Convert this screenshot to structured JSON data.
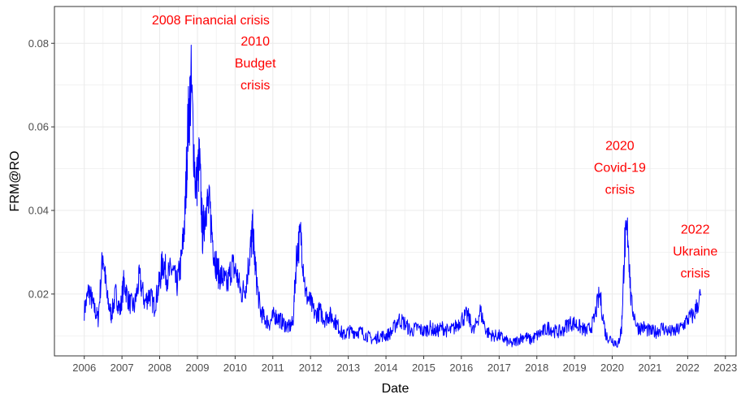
{
  "chart_data": {
    "type": "line",
    "title": "",
    "xlabel": "Date",
    "ylabel": "FRM@RO",
    "xlim": [
      "2005-03-18",
      "2023-04-15"
    ],
    "ylim": [
      0.0052,
      0.0888
    ],
    "grid": true,
    "legend": "none",
    "x_tick_labels": [
      "2006",
      "2007",
      "2008",
      "2009",
      "2010",
      "2011",
      "2012",
      "2013",
      "2014",
      "2015",
      "2016",
      "2017",
      "2018",
      "2019",
      "2020",
      "2021",
      "2022",
      "2023"
    ],
    "y_tick_labels": [
      "0.02",
      "0.04",
      "0.06",
      "0.08"
    ],
    "y_ticks": [
      0.02,
      0.04,
      0.06,
      0.08
    ],
    "colors": {
      "line": "#0000ff",
      "annotation": "#ff0000",
      "grid": "#ebebeb",
      "border": "#333333"
    },
    "series": [
      {
        "x": [
          "2006-01-01",
          "2006-02-15",
          "2006-04-01",
          "2006-05-15",
          "2006-07-01",
          "2006-08-10",
          "2006-09-20",
          "2006-11-01",
          "2006-12-15",
          "2007-01-20",
          "2007-03-10",
          "2007-05-01",
          "2007-06-20",
          "2007-08-10",
          "2007-09-25",
          "2007-11-10",
          "2007-12-25",
          "2008-02-01",
          "2008-03-15",
          "2008-05-01",
          "2008-06-15",
          "2008-07-30",
          "2008-09-01",
          "2008-10-01",
          "2008-11-01",
          "2008-12-15",
          "2009-01-20",
          "2009-02-20",
          "2009-03-25",
          "2009-05-01",
          "2009-06-10",
          "2009-07-20",
          "2009-09-01",
          "2009-10-15",
          "2009-12-01",
          "2010-01-15",
          "2010-03-01",
          "2010-04-15",
          "2010-05-25",
          "2010-06-20",
          "2010-07-20",
          "2010-09-01",
          "2010-10-15",
          "2010-12-01",
          "2011-01-15",
          "2011-03-01",
          "2011-04-15",
          "2011-06-01",
          "2011-07-15",
          "2011-08-20",
          "2011-10-01",
          "2011-11-15",
          "2012-01-01",
          "2012-02-15",
          "2012-04-01",
          "2012-05-15",
          "2012-07-01",
          "2012-08-15",
          "2012-10-01",
          "2012-11-15",
          "2013-01-01",
          "2013-03-01",
          "2013-05-01",
          "2013-07-01",
          "2013-09-01",
          "2013-11-01",
          "2014-01-01",
          "2014-03-01",
          "2014-05-01",
          "2014-07-01",
          "2014-09-01",
          "2014-11-01",
          "2015-01-01",
          "2015-03-01",
          "2015-05-01",
          "2015-07-01",
          "2015-09-01",
          "2015-11-01",
          "2016-01-01",
          "2016-03-01",
          "2016-05-01",
          "2016-07-01",
          "2016-09-01",
          "2016-11-01",
          "2017-01-01",
          "2017-03-01",
          "2017-05-01",
          "2017-07-01",
          "2017-09-01",
          "2017-11-01",
          "2018-01-01",
          "2018-03-01",
          "2018-05-01",
          "2018-07-01",
          "2018-09-01",
          "2018-11-01",
          "2019-01-01",
          "2019-03-01",
          "2019-05-01",
          "2019-07-01",
          "2019-09-01",
          "2019-11-01",
          "2020-01-01",
          "2020-03-01",
          "2020-04-01",
          "2020-05-01",
          "2020-06-01",
          "2020-07-01",
          "2020-09-01",
          "2020-11-01",
          "2021-01-01",
          "2021-03-01",
          "2021-05-01",
          "2021-07-01",
          "2021-09-01",
          "2021-11-01",
          "2022-01-01",
          "2022-03-01",
          "2022-05-10"
        ],
        "values": [
          0.016,
          0.021,
          0.017,
          0.014,
          0.03,
          0.019,
          0.015,
          0.02,
          0.016,
          0.023,
          0.018,
          0.017,
          0.024,
          0.018,
          0.02,
          0.017,
          0.022,
          0.028,
          0.024,
          0.026,
          0.022,
          0.028,
          0.038,
          0.06,
          0.07,
          0.045,
          0.052,
          0.034,
          0.042,
          0.04,
          0.03,
          0.025,
          0.024,
          0.022,
          0.027,
          0.025,
          0.02,
          0.022,
          0.03,
          0.035,
          0.025,
          0.016,
          0.014,
          0.013,
          0.015,
          0.014,
          0.013,
          0.012,
          0.013,
          0.03,
          0.034,
          0.02,
          0.018,
          0.015,
          0.016,
          0.014,
          0.015,
          0.014,
          0.012,
          0.01,
          0.011,
          0.011,
          0.011,
          0.01,
          0.009,
          0.01,
          0.01,
          0.011,
          0.014,
          0.013,
          0.011,
          0.012,
          0.011,
          0.012,
          0.011,
          0.012,
          0.011,
          0.012,
          0.014,
          0.015,
          0.011,
          0.016,
          0.011,
          0.01,
          0.01,
          0.009,
          0.008,
          0.009,
          0.01,
          0.009,
          0.01,
          0.011,
          0.012,
          0.011,
          0.011,
          0.013,
          0.013,
          0.012,
          0.011,
          0.013,
          0.02,
          0.01,
          0.009,
          0.008,
          0.012,
          0.032,
          0.035,
          0.018,
          0.012,
          0.012,
          0.011,
          0.011,
          0.012,
          0.011,
          0.011,
          0.012,
          0.014,
          0.015,
          0.02
        ]
      }
    ],
    "annotations": [
      {
        "lines": [
          "2008 Financial crisis"
        ],
        "x": "2009-05-10",
        "y": 0.0845
      },
      {
        "lines": [
          "2010",
          "Budget",
          "crisis"
        ],
        "x": "2010-07-15",
        "y": 0.0795
      },
      {
        "lines": [
          "2020",
          "Covid-19",
          "crisis"
        ],
        "x": "2020-03-15",
        "y": 0.0545
      },
      {
        "lines": [
          "2022",
          "Ukraine",
          "crisis"
        ],
        "x": "2022-03-15",
        "y": 0.0345
      }
    ]
  }
}
